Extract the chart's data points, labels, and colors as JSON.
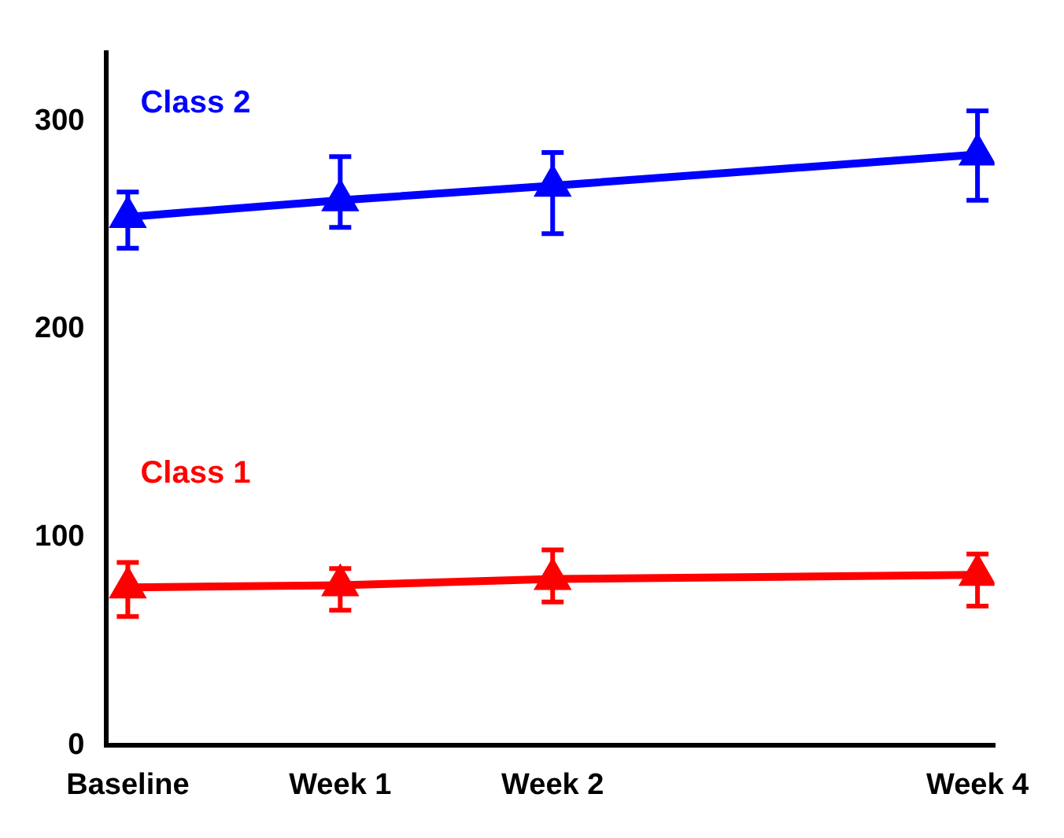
{
  "chart_data": {
    "type": "line",
    "categories": [
      "Baseline",
      "Week 1",
      "Week 2",
      null,
      "Week 4"
    ],
    "series": [
      {
        "name": "Class 2",
        "color": "#0000ff",
        "values": [
          254,
          262,
          269,
          null,
          284
        ],
        "errors": [
          [
            239,
            266
          ],
          [
            249,
            283
          ],
          [
            246,
            285
          ],
          null,
          [
            262,
            305
          ]
        ]
      },
      {
        "name": "Class 1",
        "color": "#ff0000",
        "values": [
          76,
          77,
          80,
          null,
          82
        ],
        "errors": [
          [
            62,
            88
          ],
          [
            65,
            85
          ],
          [
            69,
            94
          ],
          null,
          [
            67,
            92
          ]
        ]
      }
    ],
    "ylim": [
      0,
      333
    ],
    "yticks": [
      0,
      100,
      200,
      300
    ],
    "grid": false,
    "legend": false,
    "marker": "triangle",
    "line_style": "solid"
  }
}
